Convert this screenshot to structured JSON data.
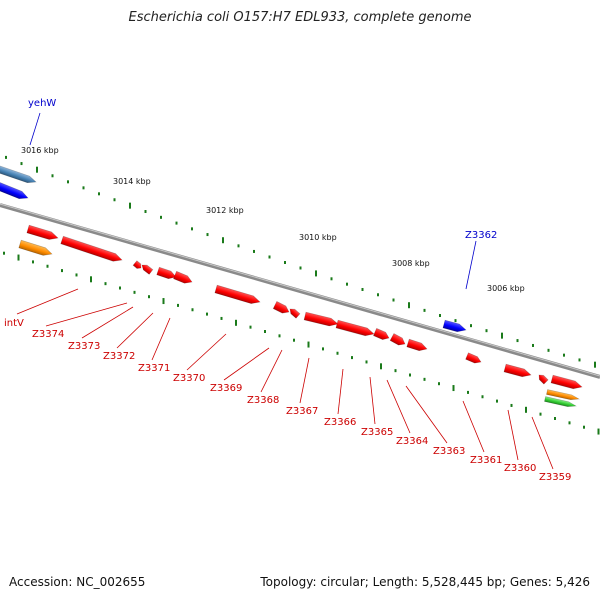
{
  "title": "Escherichia coli O157:H7 EDL933, complete genome",
  "footer": {
    "accession": "Accession: NC_002655",
    "stats": "Topology: circular; Length: 5,528,445 bp; Genes: 5,426"
  },
  "colors": {
    "backbone": "#8a8a8a",
    "tick": "#1a7a1a",
    "cds": "#ff0000",
    "label_red": "#cc0000",
    "label_blue": "#0000cc",
    "blue_gene": "#0000ff",
    "steelblue_gene": "#4682b4",
    "orange_gene": "#ff8c00",
    "green_gene": "#32cd32"
  },
  "kbp_labels": [
    "3016 kbp",
    "3014 kbp",
    "3012 kbp",
    "3010 kbp",
    "3008 kbp",
    "3006 kbp"
  ],
  "gene_labels": {
    "top": [
      "yehW",
      "Z3362"
    ],
    "bottom": [
      "intV",
      "Z3374",
      "Z3373",
      "Z3372",
      "Z3371",
      "Z3370",
      "Z3369",
      "Z3368",
      "Z3367",
      "Z3366",
      "Z3365",
      "Z3364",
      "Z3363",
      "Z3361",
      "Z3360",
      "Z3359"
    ]
  }
}
